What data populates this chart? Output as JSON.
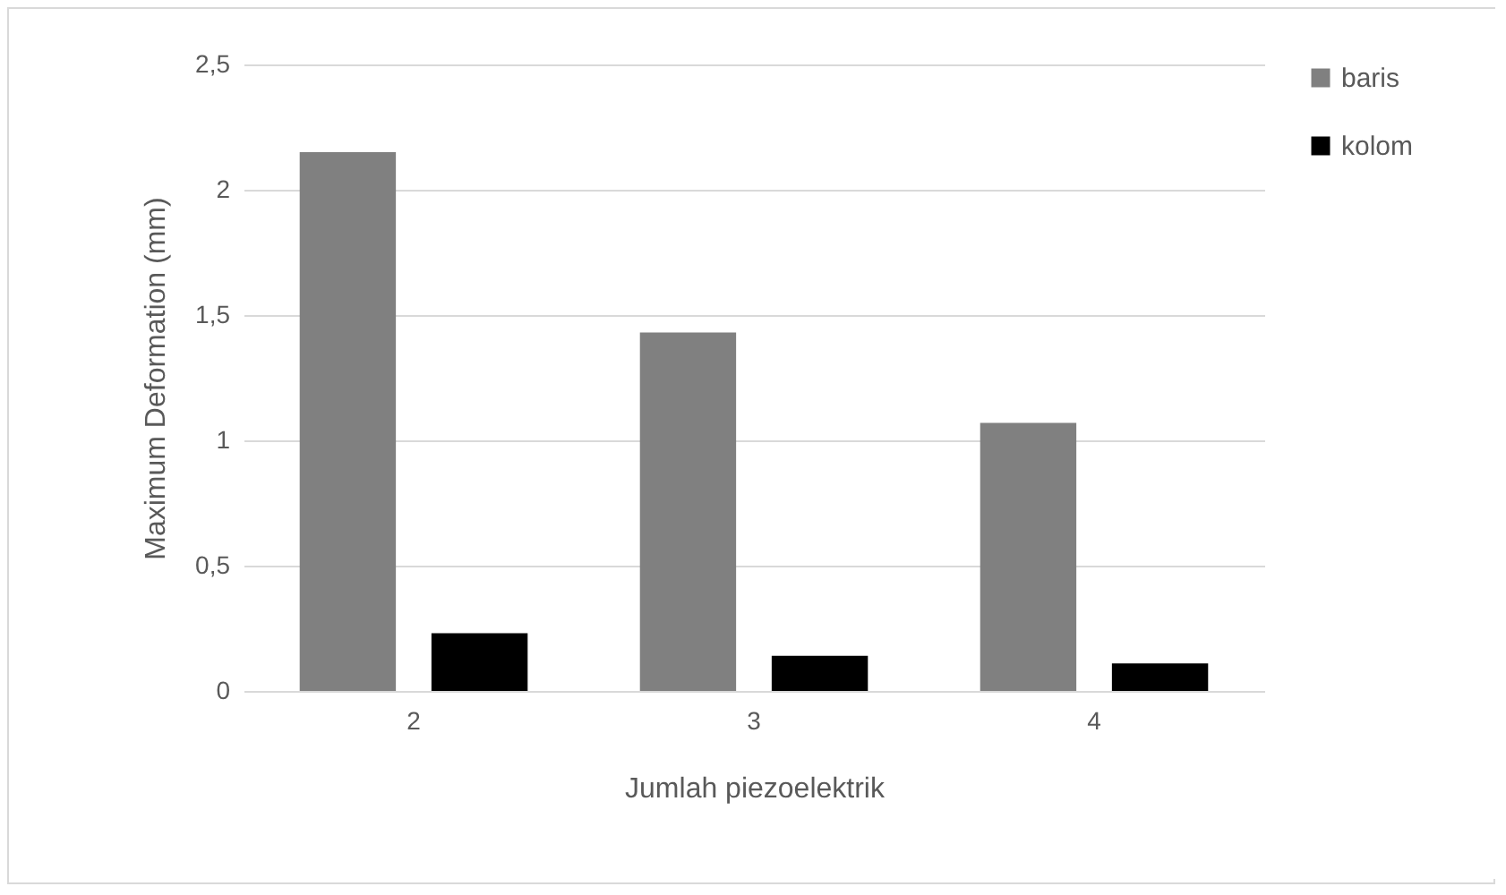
{
  "chart_data": {
    "type": "bar",
    "xlabel": "Jumlah piezoelektrik",
    "ylabel": "Maximum Deformation (mm)",
    "categories": [
      "2",
      "3",
      "4"
    ],
    "series": [
      {
        "name": "baris",
        "color": "#808080",
        "values": [
          2.15,
          1.43,
          1.07
        ]
      },
      {
        "name": "kolom",
        "color": "#000000",
        "values": [
          0.23,
          0.14,
          0.11
        ]
      }
    ],
    "ylim": [
      0,
      2.5
    ],
    "yticks": [
      0,
      {
        "value": 0.5,
        "label": "0,5"
      },
      1,
      {
        "value": 1.5,
        "label": "1,5"
      },
      2,
      {
        "value": 2.5,
        "label": "2,5"
      }
    ],
    "grid": "y",
    "legend": "right"
  }
}
